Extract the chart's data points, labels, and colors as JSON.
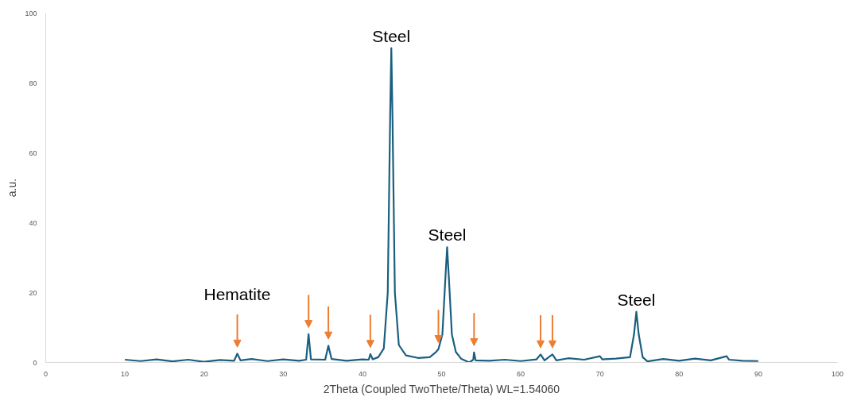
{
  "chart_data": {
    "type": "line",
    "xlabel": "2Theta (Coupled TwoThete/Theta) WL=1.54060",
    "ylabel": "a.u.",
    "series": [
      {
        "color": "#1a5f80",
        "x": [
          10,
          12,
          14,
          16,
          18,
          20,
          22,
          23.8,
          24.2,
          24.6,
          26,
          28,
          30,
          32,
          32.9,
          33.2,
          33.5,
          35.3,
          35.7,
          36.1,
          38,
          40,
          40.8,
          41,
          41.3,
          42,
          42.7,
          43.2,
          43.5,
          43.65,
          43.8,
          44.1,
          44.6,
          45.5,
          47,
          48.5,
          49.3,
          49.6,
          50.1,
          50.5,
          50.7,
          50.9,
          51.3,
          51.8,
          52.5,
          53.5,
          54.0,
          54.1,
          54.3,
          56,
          58,
          60,
          62,
          62.5,
          63,
          64,
          64.5,
          66,
          68,
          70,
          70.3,
          72,
          73.8,
          74.3,
          74.6,
          74.9,
          75.4,
          76,
          78,
          80,
          82,
          84,
          86,
          86.3,
          88,
          90
        ],
        "values": [
          0.8,
          0.4,
          0.9,
          0.3,
          0.8,
          0.2,
          0.7,
          0.5,
          2.5,
          0.6,
          1.0,
          0.4,
          0.9,
          0.5,
          0.8,
          8.1,
          0.9,
          0.8,
          4.8,
          1.0,
          0.5,
          0.9,
          0.8,
          2.4,
          0.9,
          1.5,
          4,
          20,
          70,
          90,
          70,
          20,
          5,
          2,
          1.3,
          1.5,
          3,
          3.8,
          8,
          25,
          33,
          25,
          8,
          3,
          1,
          0.0,
          0.8,
          2.9,
          0.6,
          0.5,
          0.8,
          0.4,
          0.9,
          2.3,
          0.6,
          2.3,
          0.6,
          1.2,
          0.8,
          1.8,
          0.9,
          1.1,
          1.5,
          8,
          14.5,
          8,
          1.5,
          0.3,
          1.0,
          0.5,
          1.1,
          0.6,
          1.8,
          0.8,
          0.5,
          0.4
        ]
      }
    ],
    "xlim": [
      0,
      100
    ],
    "xticks": [
      0,
      10,
      20,
      30,
      40,
      50,
      60,
      70,
      80,
      90,
      100
    ],
    "ylim": [
      0,
      100
    ],
    "yticks": [
      0,
      20,
      40,
      60,
      80,
      100
    ],
    "grid": false,
    "marker": "none",
    "line_style": "solid",
    "annotations": [
      {
        "text": "Hematite",
        "x": 24.2,
        "y": 2.5
      },
      {
        "text": "Steel",
        "x": 43.65,
        "y": 90
      },
      {
        "text": "Steel",
        "x": 50.7,
        "y": 33
      },
      {
        "text": "Steel",
        "x": 74.6,
        "y": 14.5
      }
    ]
  }
}
